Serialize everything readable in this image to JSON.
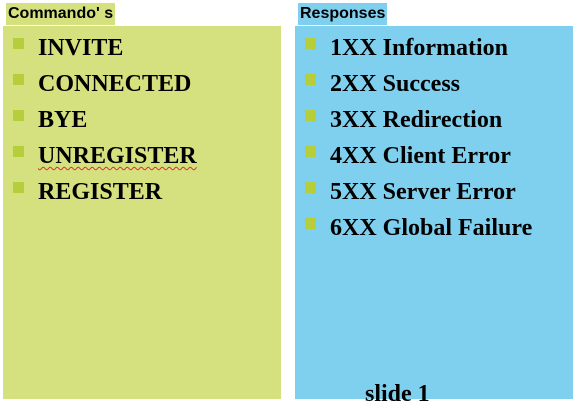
{
  "commands": {
    "title": "Commando' s",
    "items": [
      {
        "label": "INVITE"
      },
      {
        "label": "CONNECTED"
      },
      {
        "label": "BYE"
      },
      {
        "label": "UNREGISTER"
      },
      {
        "label": "REGISTER"
      }
    ]
  },
  "responses": {
    "title": "Responses",
    "items": [
      {
        "label": "1XX Information"
      },
      {
        "label": "2XX Success"
      },
      {
        "label": "3XX Redirection"
      },
      {
        "label": "4XX Client Error"
      },
      {
        "label": "5XX Server Error"
      },
      {
        "label": "6XX Global Failure"
      }
    ]
  },
  "footer": {
    "fragment": "slide 1"
  },
  "colors": {
    "commands_panel": "#d4e17e",
    "responses_panel": "#7fcfee",
    "bullet": "#b5ce3a",
    "spellcheck_underline": "#d9302c"
  }
}
